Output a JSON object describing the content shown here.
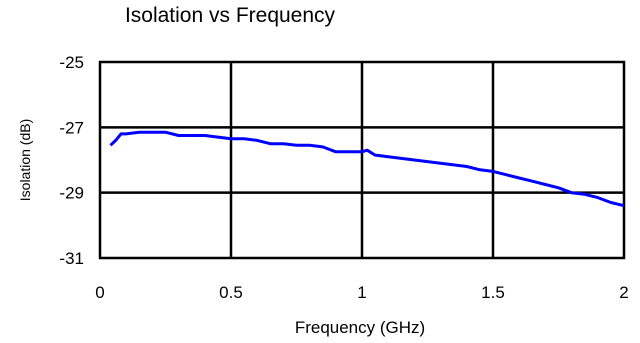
{
  "chart_data": {
    "type": "line",
    "title": "Isolation vs Frequency",
    "xlabel": "Frequency (GHz)",
    "ylabel": "Isolation (dB)",
    "xlim": [
      0,
      2
    ],
    "ylim": [
      -31,
      -25
    ],
    "xticks": [
      0,
      0.5,
      1,
      1.5,
      2
    ],
    "xtick_labels": [
      "0",
      "0.5",
      "1",
      "1.5",
      "2"
    ],
    "yticks": [
      -25,
      -27,
      -29,
      -31
    ],
    "ytick_labels": [
      "-25",
      "-27",
      "-29",
      "-31"
    ],
    "grid": true,
    "legend": false,
    "series": [
      {
        "color": "#0000ff",
        "x": [
          0.04,
          0.06,
          0.08,
          0.1,
          0.15,
          0.2,
          0.25,
          0.3,
          0.35,
          0.4,
          0.45,
          0.5,
          0.55,
          0.6,
          0.65,
          0.7,
          0.75,
          0.8,
          0.85,
          0.9,
          0.95,
          1.0,
          1.02,
          1.05,
          1.1,
          1.15,
          1.2,
          1.25,
          1.3,
          1.35,
          1.4,
          1.45,
          1.5,
          1.55,
          1.6,
          1.65,
          1.7,
          1.75,
          1.8,
          1.85,
          1.9,
          1.95,
          2.0
        ],
        "y": [
          -27.55,
          -27.4,
          -27.2,
          -27.2,
          -27.15,
          -27.15,
          -27.15,
          -27.25,
          -27.25,
          -27.25,
          -27.3,
          -27.35,
          -27.35,
          -27.4,
          -27.5,
          -27.5,
          -27.55,
          -27.55,
          -27.6,
          -27.75,
          -27.75,
          -27.75,
          -27.7,
          -27.85,
          -27.9,
          -27.95,
          -28.0,
          -28.05,
          -28.1,
          -28.15,
          -28.2,
          -28.3,
          -28.35,
          -28.45,
          -28.55,
          -28.65,
          -28.75,
          -28.85,
          -29.0,
          -29.05,
          -29.15,
          -29.3,
          -29.4
        ]
      }
    ]
  }
}
